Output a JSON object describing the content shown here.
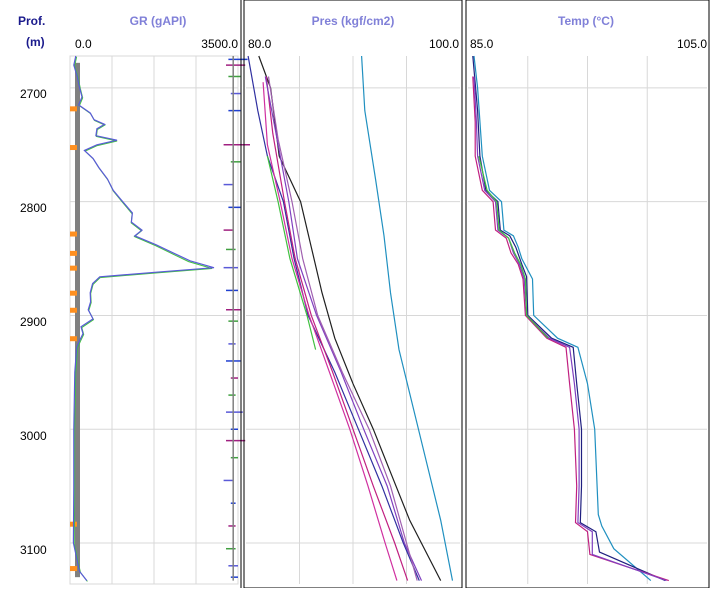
{
  "depth_track": {
    "title": "Prof.",
    "unit": "(m)",
    "ticks": [
      "2700",
      "2800",
      "2900",
      "3000",
      "3100"
    ]
  },
  "chart_data": [
    {
      "type": "line",
      "title": "GR (gAPI)",
      "xlim": [
        0.0,
        3500.0
      ],
      "x_min_label": "0.0",
      "x_max_label": "3500.0",
      "ylim": [
        2672,
        3136
      ],
      "grid": true,
      "colors": {
        "curve_main": "#5a5ad8",
        "curve_alt": "#40c040",
        "curve_dark": "#202080",
        "bar_gray": "#808080",
        "bar_orange": "#ff9020"
      },
      "gr_curve": [
        [
          2672,
          120
        ],
        [
          2680,
          80
        ],
        [
          2690,
          150
        ],
        [
          2700,
          200
        ],
        [
          2708,
          250
        ],
        [
          2715,
          180
        ],
        [
          2722,
          420
        ],
        [
          2728,
          500
        ],
        [
          2732,
          720
        ],
        [
          2736,
          560
        ],
        [
          2742,
          540
        ],
        [
          2746,
          980
        ],
        [
          2750,
          560
        ],
        [
          2755,
          300
        ],
        [
          2762,
          480
        ],
        [
          2770,
          600
        ],
        [
          2780,
          780
        ],
        [
          2790,
          900
        ],
        [
          2800,
          1100
        ],
        [
          2810,
          1300
        ],
        [
          2818,
          1280
        ],
        [
          2825,
          1500
        ],
        [
          2830,
          1350
        ],
        [
          2838,
          1800
        ],
        [
          2845,
          2150
        ],
        [
          2852,
          2500
        ],
        [
          2858,
          3000
        ],
        [
          2862,
          1800
        ],
        [
          2866,
          620
        ],
        [
          2872,
          470
        ],
        [
          2880,
          420
        ],
        [
          2888,
          430
        ],
        [
          2895,
          380
        ],
        [
          2903,
          480
        ],
        [
          2910,
          230
        ],
        [
          2916,
          270
        ],
        [
          2922,
          200
        ],
        [
          2928,
          140
        ],
        [
          2950,
          100
        ],
        [
          3000,
          80
        ],
        [
          3050,
          80
        ],
        [
          3100,
          70
        ],
        [
          3125,
          200
        ],
        [
          3133,
          350
        ]
      ],
      "gr_spikes": [
        [
          2675,
          3300,
          3700
        ],
        [
          2680,
          3250,
          3650
        ],
        [
          2690,
          3300,
          3550
        ],
        [
          2705,
          3350,
          3550
        ],
        [
          2720,
          3300,
          3550
        ],
        [
          2750,
          3200,
          3750
        ],
        [
          2765,
          3350,
          3550
        ],
        [
          2785,
          3200,
          3400
        ],
        [
          2805,
          3300,
          3550
        ],
        [
          2825,
          3200,
          3400
        ],
        [
          2842,
          3250,
          3450
        ],
        [
          2858,
          3200,
          3500
        ],
        [
          2878,
          3250,
          3500
        ],
        [
          2895,
          3250,
          3550
        ],
        [
          2905,
          3300,
          3500
        ],
        [
          2925,
          3300,
          3450
        ],
        [
          2940,
          3250,
          3550
        ],
        [
          2955,
          3350,
          3500
        ],
        [
          2970,
          3300,
          3450
        ],
        [
          2985,
          3250,
          3600
        ],
        [
          3000,
          3350,
          3500
        ],
        [
          3010,
          3250,
          3650
        ],
        [
          3025,
          3350,
          3500
        ],
        [
          3045,
          3200,
          3400
        ],
        [
          3065,
          3350,
          3450
        ],
        [
          3085,
          3300,
          3450
        ],
        [
          3105,
          3250,
          3450
        ],
        [
          3120,
          3300,
          3500
        ],
        [
          3130,
          3350,
          3500
        ]
      ],
      "orange_marks": [
        2718,
        2752,
        2828,
        2845,
        2858,
        2880,
        2895,
        2920,
        3083,
        3122
      ]
    },
    {
      "type": "line",
      "title": "Pres (kgf/cm2)",
      "xlim": [
        80.0,
        100.0
      ],
      "x_min_label": "80.0",
      "x_max_label": "100.0",
      "ylim": [
        2672,
        3136
      ],
      "grid": true,
      "series": [
        {
          "color": "#2090c0",
          "points": [
            [
              2672,
              90.8
            ],
            [
              2720,
              91.1
            ],
            [
              2780,
              92.1
            ],
            [
              2830,
              92.9
            ],
            [
              2880,
              93.5
            ],
            [
              2930,
              94.3
            ],
            [
              2980,
              95.6
            ],
            [
              3030,
              96.9
            ],
            [
              3080,
              98.2
            ],
            [
              3133,
              99.3
            ]
          ]
        },
        {
          "color": "#202020",
          "points": [
            [
              2672,
              81.2
            ],
            [
              2700,
              82.3
            ],
            [
              2760,
              83.1
            ],
            [
              2800,
              85.1
            ],
            [
              2840,
              86.1
            ],
            [
              2880,
              87.1
            ],
            [
              2920,
              88.3
            ],
            [
              2960,
              90.0
            ],
            [
              3000,
              91.9
            ],
            [
              3040,
              93.6
            ],
            [
              3080,
              95.3
            ],
            [
              3133,
              98.2
            ]
          ]
        },
        {
          "color": "#3030a0",
          "points": [
            [
              2672,
              80.2
            ],
            [
              2720,
              81.1
            ],
            [
              2760,
              82.0
            ],
            [
              2800,
              83.5
            ],
            [
              2850,
              84.5
            ],
            [
              2900,
              85.8
            ],
            [
              2950,
              88.3
            ],
            [
              3000,
              90.5
            ],
            [
              3050,
              92.7
            ],
            [
              3100,
              94.7
            ],
            [
              3133,
              96.2
            ]
          ]
        },
        {
          "color": "#40c040",
          "points": [
            [
              2760,
              82.0
            ],
            [
              2800,
              83.0
            ],
            [
              2850,
              84.1
            ],
            [
              2900,
              85.7
            ],
            [
              2930,
              86.5
            ]
          ]
        },
        {
          "color": "#c02080",
          "points": [
            [
              2690,
              81.9
            ],
            [
              2740,
              82.5
            ],
            [
              2800,
              83.6
            ],
            [
              2850,
              84.6
            ],
            [
              2900,
              86.1
            ],
            [
              2950,
              88.1
            ],
            [
              3000,
              90.0
            ],
            [
              3050,
              91.9
            ],
            [
              3100,
              93.9
            ],
            [
              3133,
              95.1
            ]
          ]
        },
        {
          "color": "#8040c0",
          "points": [
            [
              2690,
              81.8
            ],
            [
              2740,
              82.8
            ],
            [
              2800,
              84.0
            ],
            [
              2850,
              84.8
            ],
            [
              2900,
              86.6
            ],
            [
              2950,
              88.9
            ],
            [
              3000,
              91.0
            ],
            [
              3050,
              93.2
            ],
            [
              3100,
              94.8
            ],
            [
              3133,
              96.4
            ]
          ]
        },
        {
          "color": "#a060b0",
          "points": [
            [
              2690,
              82.1
            ],
            [
              2745,
              83.0
            ],
            [
              2800,
              84.3
            ],
            [
              2850,
              85.3
            ],
            [
              2900,
              86.7
            ],
            [
              2950,
              89.0
            ],
            [
              3000,
              91.5
            ],
            [
              3050,
              93.5
            ],
            [
              3100,
              95.0
            ],
            [
              3133,
              96.0
            ]
          ]
        },
        {
          "color": "#d030a0",
          "points": [
            [
              2695,
              81.6
            ],
            [
              2750,
              82.0
            ],
            [
              2800,
              83.2
            ],
            [
              2850,
              84.3
            ],
            [
              2900,
              85.9
            ],
            [
              2950,
              87.8
            ],
            [
              3000,
              89.7
            ],
            [
              3050,
              91.4
            ],
            [
              3100,
              93.0
            ],
            [
              3133,
              94.1
            ]
          ]
        }
      ]
    },
    {
      "type": "line",
      "title": "Temp (°C)",
      "xlim": [
        85.0,
        105.0
      ],
      "x_min_label": "85.0",
      "x_max_label": "105.0",
      "ylim": [
        2672,
        3136
      ],
      "grid": true,
      "series": [
        {
          "color": "#2090c0",
          "points": [
            [
              2672,
              85.5
            ],
            [
              2700,
              85.8
            ],
            [
              2760,
              86.2
            ],
            [
              2790,
              86.8
            ],
            [
              2800,
              87.8
            ],
            [
              2825,
              88.0
            ],
            [
              2830,
              88.8
            ],
            [
              2840,
              89.2
            ],
            [
              2850,
              89.5
            ],
            [
              2862,
              90.1
            ],
            [
              2868,
              90.4
            ],
            [
              2900,
              90.5
            ],
            [
              2920,
              92.5
            ],
            [
              2928,
              94.2
            ],
            [
              2960,
              95.0
            ],
            [
              3000,
              95.6
            ],
            [
              3050,
              95.8
            ],
            [
              3075,
              95.9
            ],
            [
              3085,
              96.2
            ],
            [
              3105,
              97.2
            ],
            [
              3133,
              100.3
            ]
          ]
        },
        {
          "color": "#202080",
          "points": [
            [
              2672,
              85.4
            ],
            [
              2720,
              85.8
            ],
            [
              2760,
              86.0
            ],
            [
              2790,
              86.5
            ],
            [
              2800,
              87.5
            ],
            [
              2825,
              87.7
            ],
            [
              2830,
              88.5
            ],
            [
              2840,
              89.0
            ],
            [
              2855,
              89.5
            ],
            [
              2866,
              89.9
            ],
            [
              2900,
              90.0
            ],
            [
              2920,
              92.0
            ],
            [
              2928,
              93.8
            ],
            [
              2960,
              94.1
            ],
            [
              3000,
              94.5
            ],
            [
              3050,
              94.5
            ],
            [
              3082,
              94.4
            ],
            [
              3090,
              95.7
            ],
            [
              3108,
              96.0
            ],
            [
              3133,
              101.5
            ]
          ]
        },
        {
          "color": "#c02080",
          "points": [
            [
              2690,
              85.4
            ],
            [
              2730,
              85.6
            ],
            [
              2760,
              85.6
            ],
            [
              2790,
              86.2
            ],
            [
              2800,
              87.1
            ],
            [
              2825,
              87.3
            ],
            [
              2832,
              88.2
            ],
            [
              2845,
              88.6
            ],
            [
              2855,
              89.2
            ],
            [
              2868,
              89.6
            ],
            [
              2900,
              89.8
            ],
            [
              2920,
              91.6
            ],
            [
              2928,
              93.2
            ],
            [
              2960,
              93.5
            ],
            [
              3000,
              93.9
            ],
            [
              3050,
              94.1
            ],
            [
              3082,
              94.0
            ],
            [
              3090,
              95.0
            ],
            [
              3110,
              95.2
            ],
            [
              3133,
              101.8
            ]
          ]
        },
        {
          "color": "#8040c0",
          "points": [
            [
              2690,
              85.5
            ],
            [
              2730,
              85.7
            ],
            [
              2760,
              85.8
            ],
            [
              2790,
              86.4
            ],
            [
              2800,
              87.3
            ],
            [
              2825,
              87.5
            ],
            [
              2832,
              88.4
            ],
            [
              2845,
              88.8
            ],
            [
              2855,
              89.3
            ],
            [
              2868,
              89.7
            ],
            [
              2900,
              89.9
            ],
            [
              2920,
              91.8
            ],
            [
              2928,
              93.5
            ],
            [
              2960,
              93.9
            ],
            [
              3000,
              94.3
            ],
            [
              3050,
              94.3
            ],
            [
              3082,
              94.2
            ],
            [
              3090,
              95.4
            ],
            [
              3110,
              95.4
            ],
            [
              3133,
              101.6
            ]
          ]
        },
        {
          "color": "#40c040",
          "points": [
            [
              2760,
              85.9
            ],
            [
              2790,
              86.6
            ],
            [
              2800,
              87.4
            ],
            [
              2825,
              87.6
            ],
            [
              2832,
              88.4
            ],
            [
              2845,
              88.9
            ],
            [
              2855,
              89.4
            ],
            [
              2868,
              89.8
            ],
            [
              2900,
              89.9
            ],
            [
              2920,
              91.7
            ]
          ]
        }
      ]
    }
  ]
}
